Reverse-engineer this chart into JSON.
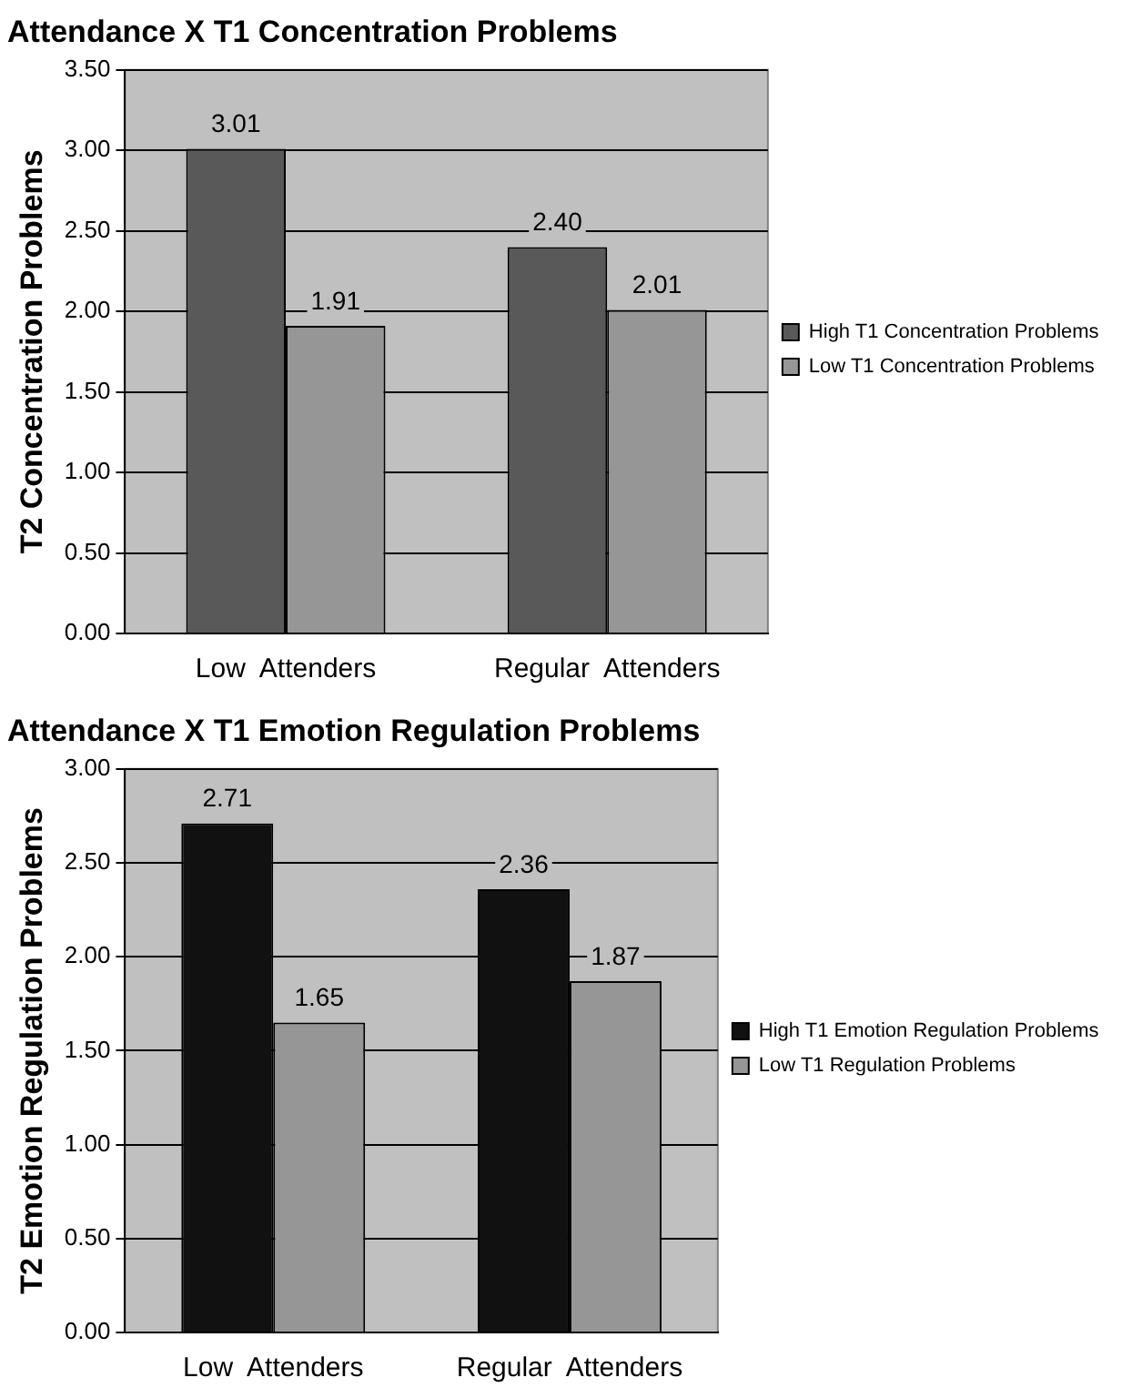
{
  "chart_data": [
    {
      "type": "bar",
      "title": "Attendance X T1 Concentration Problems",
      "ylabel": "T2 Concentration Problems",
      "categories": [
        "Low  Attenders",
        "Regular  Attenders"
      ],
      "series": [
        {
          "name": "High T1 Concentration Problems",
          "color": "#595959",
          "values": [
            3.01,
            2.4
          ],
          "value_labels": [
            "3.01",
            "2.40"
          ]
        },
        {
          "name": "Low T1 Concentration Problems",
          "color": "#969696",
          "values": [
            1.91,
            2.01
          ],
          "value_labels": [
            "1.91",
            "2.01"
          ]
        }
      ],
      "ylim": [
        0,
        3.5
      ],
      "yticks": [
        {
          "value": 0,
          "label": "0.00"
        },
        {
          "value": 0.5,
          "label": "0.50"
        },
        {
          "value": 1,
          "label": "1.00"
        },
        {
          "value": 1.5,
          "label": "1.50"
        },
        {
          "value": 2,
          "label": "2.00"
        },
        {
          "value": 2.5,
          "label": "2.50"
        },
        {
          "value": 3,
          "label": "3.00"
        },
        {
          "value": 3.5,
          "label": "3.50"
        }
      ],
      "grid": "y",
      "legend": "right"
    },
    {
      "type": "bar",
      "title": "Attendance X T1 Emotion Regulation Problems",
      "ylabel": "T2 Emotion Regulation Problems",
      "categories": [
        "Low  Attenders",
        "Regular  Attenders"
      ],
      "series": [
        {
          "name": "High T1 Emotion Regulation Problems",
          "color": "#111111",
          "values": [
            2.71,
            2.36
          ],
          "value_labels": [
            "2.71",
            "2.36"
          ]
        },
        {
          "name": "Low T1 Regulation Problems",
          "color": "#969696",
          "values": [
            1.65,
            1.87
          ],
          "value_labels": [
            "1.65",
            "1.87"
          ]
        }
      ],
      "ylim": [
        0,
        3
      ],
      "yticks": [
        {
          "value": 0,
          "label": "0.00"
        },
        {
          "value": 0.5,
          "label": "0.50"
        },
        {
          "value": 1,
          "label": "1.00"
        },
        {
          "value": 1.5,
          "label": "1.50"
        },
        {
          "value": 2,
          "label": "2.00"
        },
        {
          "value": 2.5,
          "label": "2.50"
        },
        {
          "value": 3,
          "label": "3.00"
        }
      ],
      "grid": "y",
      "legend": "right"
    }
  ]
}
